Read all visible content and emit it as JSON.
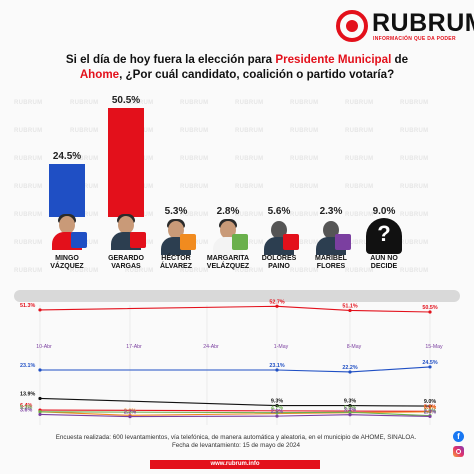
{
  "brand": {
    "name": "RUBRUM",
    "tagline": "INFORMACIÓN QUE DA PODER",
    "watermark": "RUBRUM",
    "red": "#e3101b",
    "website": "www.rubrum.info"
  },
  "question": {
    "part1": "Si el día de hoy fuera la elección para ",
    "highlight1": "Presidente Municipal",
    "part2": " de",
    "highlight2": "Ahome",
    "part3": ", ¿Por cuál candidato, coalición o partido votaría?"
  },
  "chart_data": [
    {
      "type": "bar",
      "title": "",
      "categories": [
        "MINGO VÁZQUEZ",
        "GERARDO VARGAS",
        "HÉCTOR ÁLVAREZ",
        "MARGARITA VELÁZQUEZ",
        "DOLORES PAINO",
        "MARIBEL FLORES",
        "AÚN NO DECIDE"
      ],
      "category_lines": [
        [
          "MINGO",
          "VÁZQUEZ"
        ],
        [
          "GERARDO",
          "VARGAS"
        ],
        [
          "HÉCTOR",
          "ÁLVAREZ"
        ],
        [
          "MARGARITA",
          "VELÁZQUEZ"
        ],
        [
          "DOLORES",
          "PAINO"
        ],
        [
          "MARIBEL",
          "FLORES"
        ],
        [
          "AÚN NO",
          "DECIDE"
        ]
      ],
      "values": [
        24.5,
        50.5,
        5.3,
        2.8,
        5.6,
        2.3,
        9.0
      ],
      "labels": [
        "24.5%",
        "50.5%",
        "5.3%",
        "2.8%",
        "5.6%",
        "2.3%",
        "9.0%"
      ],
      "colors": [
        "#1f4fc4",
        "#e3101b",
        "#f18b1f",
        "#6ab04c",
        "#e3101b",
        "#7b3fa0",
        "#888888"
      ],
      "party_logos": [
        "PAN",
        "MORENA",
        "MC",
        "VERDE",
        "PT",
        "PES",
        ""
      ],
      "ylim": [
        0,
        52
      ]
    },
    {
      "type": "line",
      "title": "",
      "x": [
        "10-Abr",
        "17-Abr",
        "24-Abr",
        "1-May",
        "8-May",
        "15-May"
      ],
      "ylim": [
        0,
        56
      ],
      "series": [
        {
          "color": "#e3101b",
          "values": [
            51.3,
            null,
            null,
            52.7,
            51.1,
            50.5
          ],
          "labels": [
            "51.3%",
            "",
            "",
            "52.7%",
            "51.1%",
            "50.5%"
          ]
        },
        {
          "color": "#1f4fc4",
          "values": [
            23.1,
            null,
            null,
            23.1,
            22.2,
            24.5
          ],
          "labels": [
            "23.1%",
            "",
            "",
            "23.1%",
            "22.2%",
            "24.5%"
          ]
        },
        {
          "color": "#111111",
          "values": [
            13.9,
            null,
            null,
            9.3,
            9.3,
            9.0
          ],
          "labels": [
            "13.9%",
            "",
            "",
            "9.3%",
            "9.3%",
            "9.0%"
          ]
        },
        {
          "color": "#e3101b",
          "values": [
            6.4,
            null,
            null,
            null,
            null,
            5.6
          ],
          "labels": [
            "6.4%",
            "",
            "",
            "",
            "",
            "5.6%"
          ]
        },
        {
          "color": "#f18b1f",
          "values": [
            5.3,
            3.0,
            null,
            null,
            null,
            5.3
          ],
          "labels": [
            "",
            "3.0%",
            "",
            "",
            "",
            "5.3%"
          ]
        },
        {
          "color": "#6ab04c",
          "values": [
            5.3,
            null,
            null,
            4.7,
            5.0,
            2.8
          ],
          "labels": [
            "5.3%",
            "",
            "",
            "4.7%",
            "5.0%",
            "2.8%"
          ]
        },
        {
          "color": "#7b3fa0",
          "values": [
            3.6,
            2.2,
            null,
            2.5,
            3.4,
            2.3
          ],
          "labels": [
            "3.6%",
            "2.2%",
            "",
            "2.5%",
            "3.4%",
            "2.3%"
          ]
        }
      ]
    }
  ],
  "footer": {
    "line1": "Encuesta realizada: 600 levantamientos, vía telefónica, de manera automática y aleatoria, en el municipio de AHOME, SINALOA.",
    "line2": "Fecha de levantamiento: 15 de mayo de 2024"
  },
  "social": {
    "facebook_icon": "facebook-icon",
    "instagram_icon": "instagram-icon"
  }
}
